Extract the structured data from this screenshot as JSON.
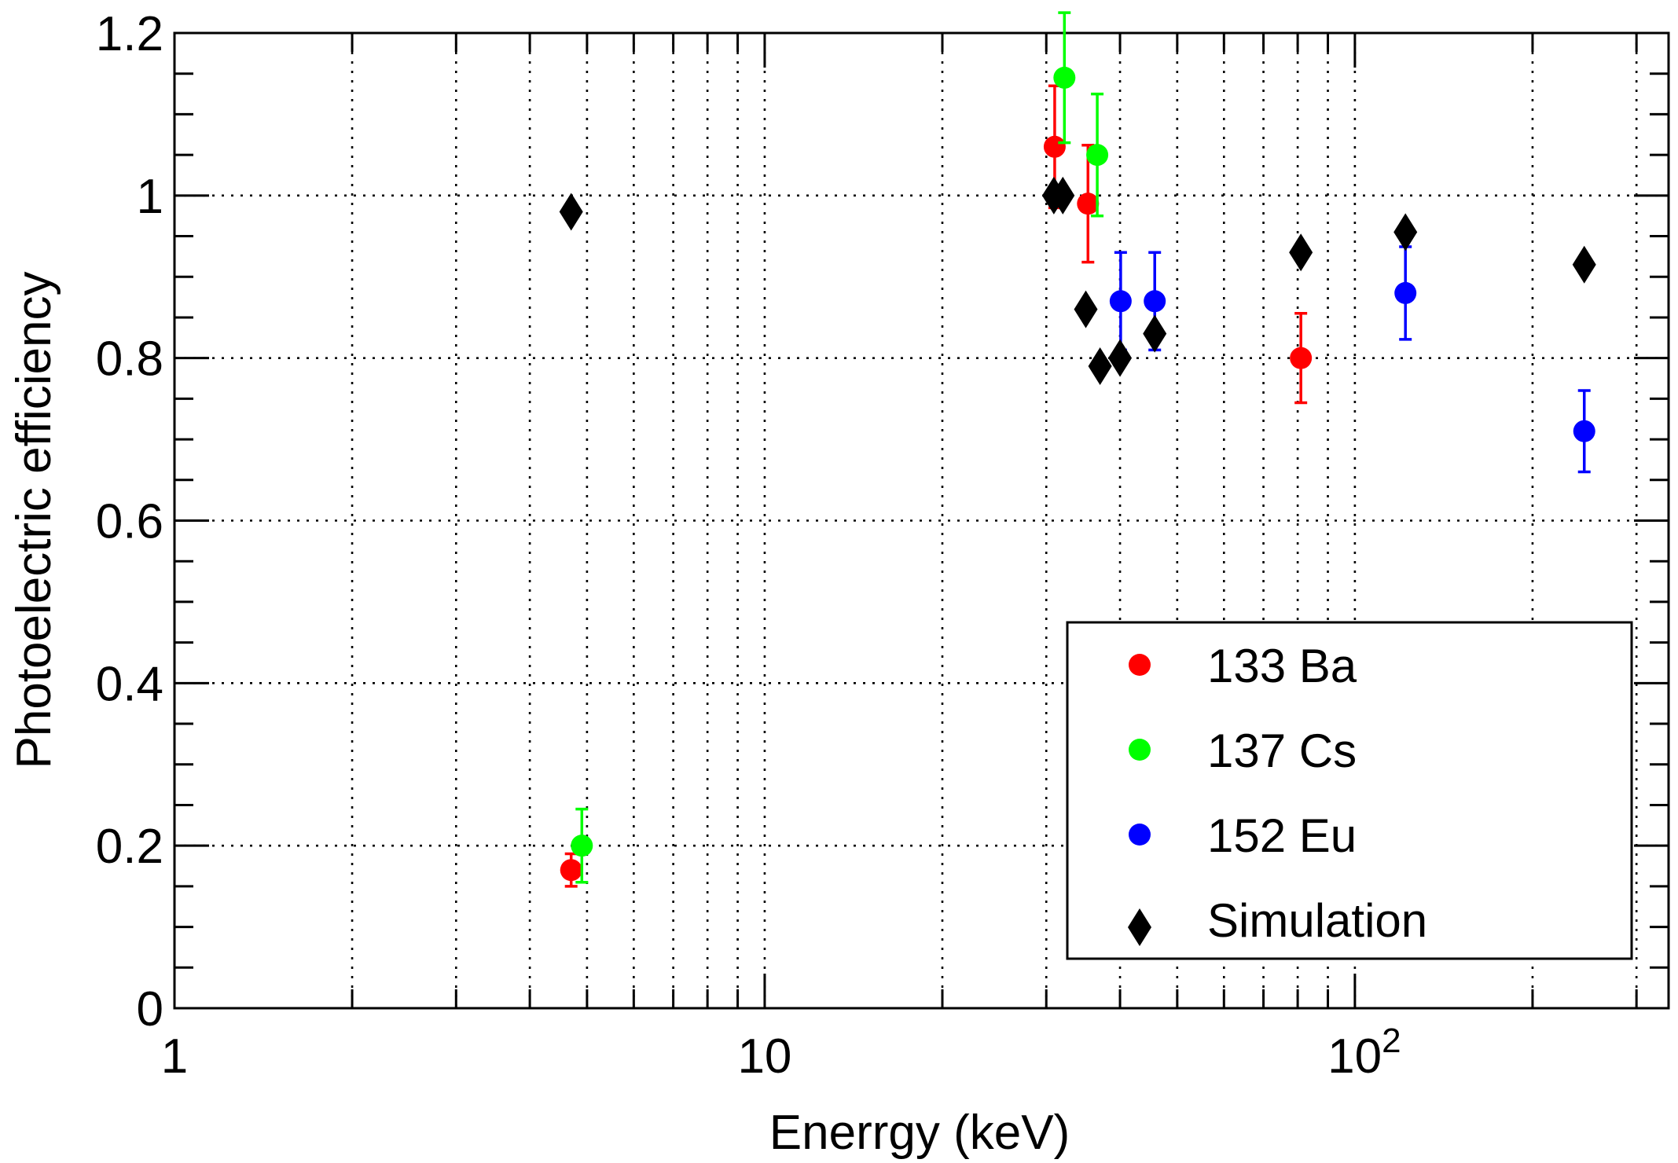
{
  "chart_data": {
    "type": "scatter",
    "xlabel": "Enerrgy (keV)",
    "ylabel": "Photoelectric efficiency",
    "x_scale": "log",
    "xlim": [
      1,
      340
    ],
    "ylim": [
      0,
      1.2
    ],
    "grid": true,
    "legend_position": "bottom-right",
    "x_tick_labels": [
      {
        "value": 1,
        "base": "1",
        "exp": ""
      },
      {
        "value": 10,
        "base": "10",
        "exp": ""
      },
      {
        "value": 100,
        "base": "10",
        "exp": "2"
      }
    ],
    "y_tick_labels": [
      "0",
      "0.2",
      "0.4",
      "0.6",
      "0.8",
      "1",
      "1.2"
    ],
    "series": [
      {
        "name": "133 Ba",
        "color": "#ff0000",
        "marker": "circle",
        "points": [
          {
            "x": 4.7,
            "y": 0.17,
            "err": 0.02
          },
          {
            "x": 31.0,
            "y": 1.06,
            "err": 0.075
          },
          {
            "x": 35.3,
            "y": 0.99,
            "err": 0.072
          },
          {
            "x": 81.0,
            "y": 0.8,
            "err": 0.055
          }
        ]
      },
      {
        "name": "137 Cs",
        "color": "#00ff00",
        "marker": "circle",
        "points": [
          {
            "x": 4.9,
            "y": 0.2,
            "err": 0.045
          },
          {
            "x": 32.2,
            "y": 1.145,
            "err": 0.08
          },
          {
            "x": 36.6,
            "y": 1.05,
            "err": 0.075
          }
        ]
      },
      {
        "name": "152 Eu",
        "color": "#0000ff",
        "marker": "circle",
        "points": [
          {
            "x": 40.1,
            "y": 0.87,
            "err": 0.06
          },
          {
            "x": 45.8,
            "y": 0.87,
            "err": 0.06
          },
          {
            "x": 121.8,
            "y": 0.88,
            "err": 0.057
          },
          {
            "x": 244.7,
            "y": 0.71,
            "err": 0.05
          }
        ]
      },
      {
        "name": "Simulation",
        "color": "#000000",
        "marker": "diamond",
        "points": [
          {
            "x": 4.7,
            "y": 0.98
          },
          {
            "x": 30.9,
            "y": 1.0
          },
          {
            "x": 32.0,
            "y": 1.0
          },
          {
            "x": 35.0,
            "y": 0.86
          },
          {
            "x": 37.0,
            "y": 0.79
          },
          {
            "x": 40.0,
            "y": 0.8
          },
          {
            "x": 45.8,
            "y": 0.83
          },
          {
            "x": 81.0,
            "y": 0.93
          },
          {
            "x": 121.8,
            "y": 0.955
          },
          {
            "x": 244.7,
            "y": 0.915
          }
        ]
      }
    ]
  }
}
